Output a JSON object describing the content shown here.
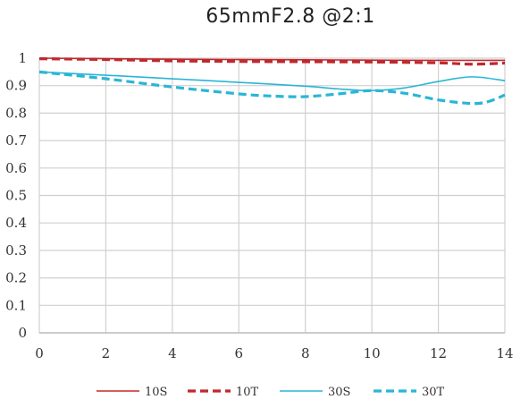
{
  "chart_data": {
    "type": "line",
    "title": "65mmF2.8 @2:1",
    "xlabel": "",
    "ylabel": "",
    "xlim": [
      0,
      14
    ],
    "ylim": [
      0,
      1
    ],
    "x_ticks": [
      "0",
      "2",
      "4",
      "6",
      "8",
      "10",
      "12",
      "14"
    ],
    "y_ticks": [
      "0",
      "0.1",
      "0.2",
      "0.3",
      "0.4",
      "0.5",
      "0.6",
      "0.7",
      "0.8",
      "0.9",
      "1"
    ],
    "grid": true,
    "legend_position": "bottom",
    "series": [
      {
        "name": "10S",
        "color": "#c0282d",
        "style": "solid",
        "x": [
          0,
          2,
          4,
          6,
          8,
          10,
          12,
          14
        ],
        "y": [
          1.0,
          0.998,
          0.996,
          0.995,
          0.994,
          0.993,
          0.992,
          0.992
        ]
      },
      {
        "name": "10T",
        "color": "#c0282d",
        "style": "dashed",
        "x": [
          0,
          2,
          4,
          6,
          8,
          10,
          12,
          13,
          14
        ],
        "y": [
          0.998,
          0.995,
          0.99,
          0.988,
          0.987,
          0.986,
          0.983,
          0.978,
          0.982
        ]
      },
      {
        "name": "30S",
        "color": "#29b6d6",
        "style": "solid",
        "x": [
          0,
          2,
          4,
          6,
          8,
          9,
          10,
          11,
          12,
          13,
          14
        ],
        "y": [
          0.95,
          0.938,
          0.925,
          0.912,
          0.898,
          0.888,
          0.882,
          0.892,
          0.915,
          0.932,
          0.918
        ]
      },
      {
        "name": "30T",
        "color": "#29b6d6",
        "style": "dashed",
        "x": [
          0,
          2,
          4,
          6,
          7,
          8,
          9,
          10,
          11,
          12,
          13,
          13.5,
          14
        ],
        "y": [
          0.95,
          0.925,
          0.895,
          0.87,
          0.862,
          0.86,
          0.87,
          0.882,
          0.872,
          0.848,
          0.835,
          0.842,
          0.866
        ]
      }
    ]
  }
}
